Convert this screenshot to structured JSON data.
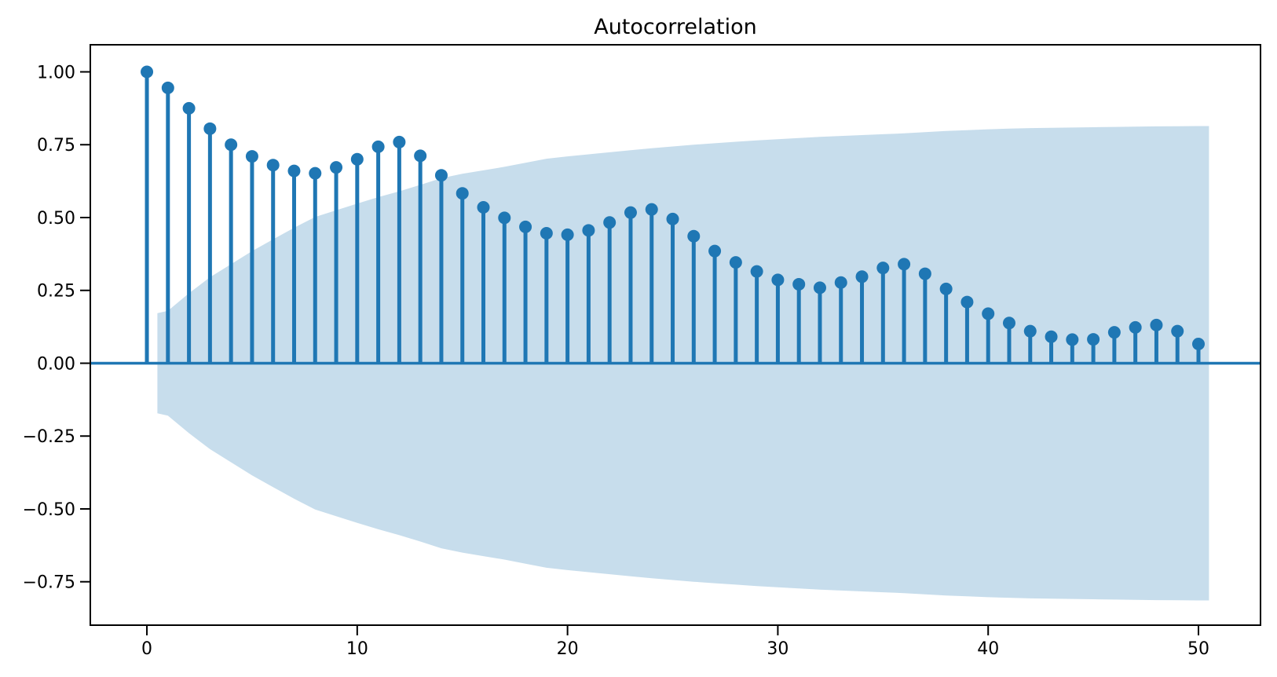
{
  "chart_data": {
    "type": "stem",
    "title": "Autocorrelation",
    "xlabel": "",
    "ylabel": "",
    "x": [
      0,
      1,
      2,
      3,
      4,
      5,
      6,
      7,
      8,
      9,
      10,
      11,
      12,
      13,
      14,
      15,
      16,
      17,
      18,
      19,
      20,
      21,
      22,
      23,
      24,
      25,
      26,
      27,
      28,
      29,
      30,
      31,
      32,
      33,
      34,
      35,
      36,
      37,
      38,
      39,
      40,
      41,
      42,
      43,
      44,
      45,
      46,
      47,
      48,
      49,
      50
    ],
    "values": [
      1.0,
      0.945,
      0.875,
      0.805,
      0.75,
      0.71,
      0.68,
      0.66,
      0.652,
      0.672,
      0.7,
      0.743,
      0.759,
      0.712,
      0.645,
      0.583,
      0.535,
      0.499,
      0.468,
      0.446,
      0.441,
      0.456,
      0.483,
      0.517,
      0.528,
      0.495,
      0.436,
      0.385,
      0.346,
      0.315,
      0.286,
      0.271,
      0.259,
      0.277,
      0.297,
      0.327,
      0.34,
      0.307,
      0.255,
      0.21,
      0.17,
      0.138,
      0.11,
      0.091,
      0.081,
      0.082,
      0.106,
      0.123,
      0.131,
      0.11,
      0.066
    ],
    "confidence_band": {
      "x": [
        0.5,
        1,
        2,
        3,
        4,
        5,
        6,
        7,
        8,
        9,
        10,
        11,
        12,
        13,
        14,
        15,
        16,
        17,
        18,
        19,
        20,
        21,
        22,
        23,
        24,
        25,
        26,
        27,
        28,
        29,
        30,
        31,
        32,
        33,
        34,
        35,
        36,
        37,
        38,
        39,
        40,
        41,
        42,
        43,
        44,
        45,
        46,
        47,
        48,
        49,
        50,
        50.5
      ],
      "upper": [
        0.172,
        0.18,
        0.24,
        0.295,
        0.34,
        0.385,
        0.425,
        0.465,
        0.502,
        0.525,
        0.548,
        0.57,
        0.59,
        0.612,
        0.635,
        0.65,
        0.662,
        0.674,
        0.688,
        0.702,
        0.71,
        0.717,
        0.724,
        0.731,
        0.738,
        0.744,
        0.75,
        0.755,
        0.76,
        0.765,
        0.769,
        0.773,
        0.777,
        0.78,
        0.783,
        0.786,
        0.789,
        0.793,
        0.797,
        0.8,
        0.803,
        0.805,
        0.807,
        0.808,
        0.809,
        0.81,
        0.811,
        0.812,
        0.813,
        0.8135,
        0.814,
        0.814
      ],
      "symmetric": true
    },
    "xticks": [
      0,
      10,
      20,
      30,
      40,
      50
    ],
    "xtick_labels": [
      "0",
      "10",
      "20",
      "30",
      "40",
      "50"
    ],
    "yticks": [
      -0.75,
      -0.5,
      -0.25,
      0,
      0.25,
      0.5,
      0.75,
      1.0
    ],
    "ytick_labels": [
      "−0.75",
      "−0.50",
      "−0.25",
      "0.00",
      "0.25",
      "0.50",
      "0.75",
      "1.00"
    ],
    "xlim": [
      -2.69,
      52.95
    ],
    "ylim": [
      -0.899,
      1.093
    ],
    "grid": false,
    "legend": null,
    "colors": {
      "stem": "#1f77b4",
      "marker": "#1f77b4",
      "band": "#1f77b4",
      "band_opacity": 0.25,
      "zero_line": "#1f77b4",
      "spine": "#000000",
      "text": "#000000",
      "background": "#ffffff"
    }
  }
}
